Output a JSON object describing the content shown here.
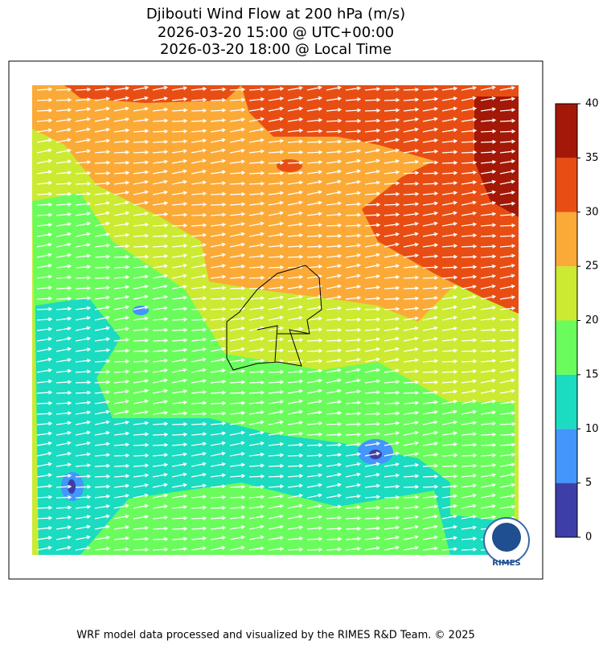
{
  "map": {
    "title_lines": [
      "Djibouti Wind Flow at 200 hPa (m/s)",
      "2026-03-20 15:00 @ UTC+00:00",
      "2026-03-20 18:00 @ Local Time"
    ],
    "colorbar": {
      "levels": [
        0,
        5,
        10,
        15,
        20,
        25,
        30,
        35,
        40
      ],
      "colors": [
        "#3e3ea8",
        "#4396fb",
        "#1bdbc0",
        "#6afc5c",
        "#cbea31",
        "#fbaa37",
        "#e84e14",
        "#a31806"
      ],
      "ticks": [
        0,
        5,
        10,
        15,
        20,
        25,
        30,
        35,
        40
      ]
    },
    "logo_text": "RIMES",
    "footer": "WRF model data processed and visualized by the RIMES R&D Team. © 2025"
  }
}
